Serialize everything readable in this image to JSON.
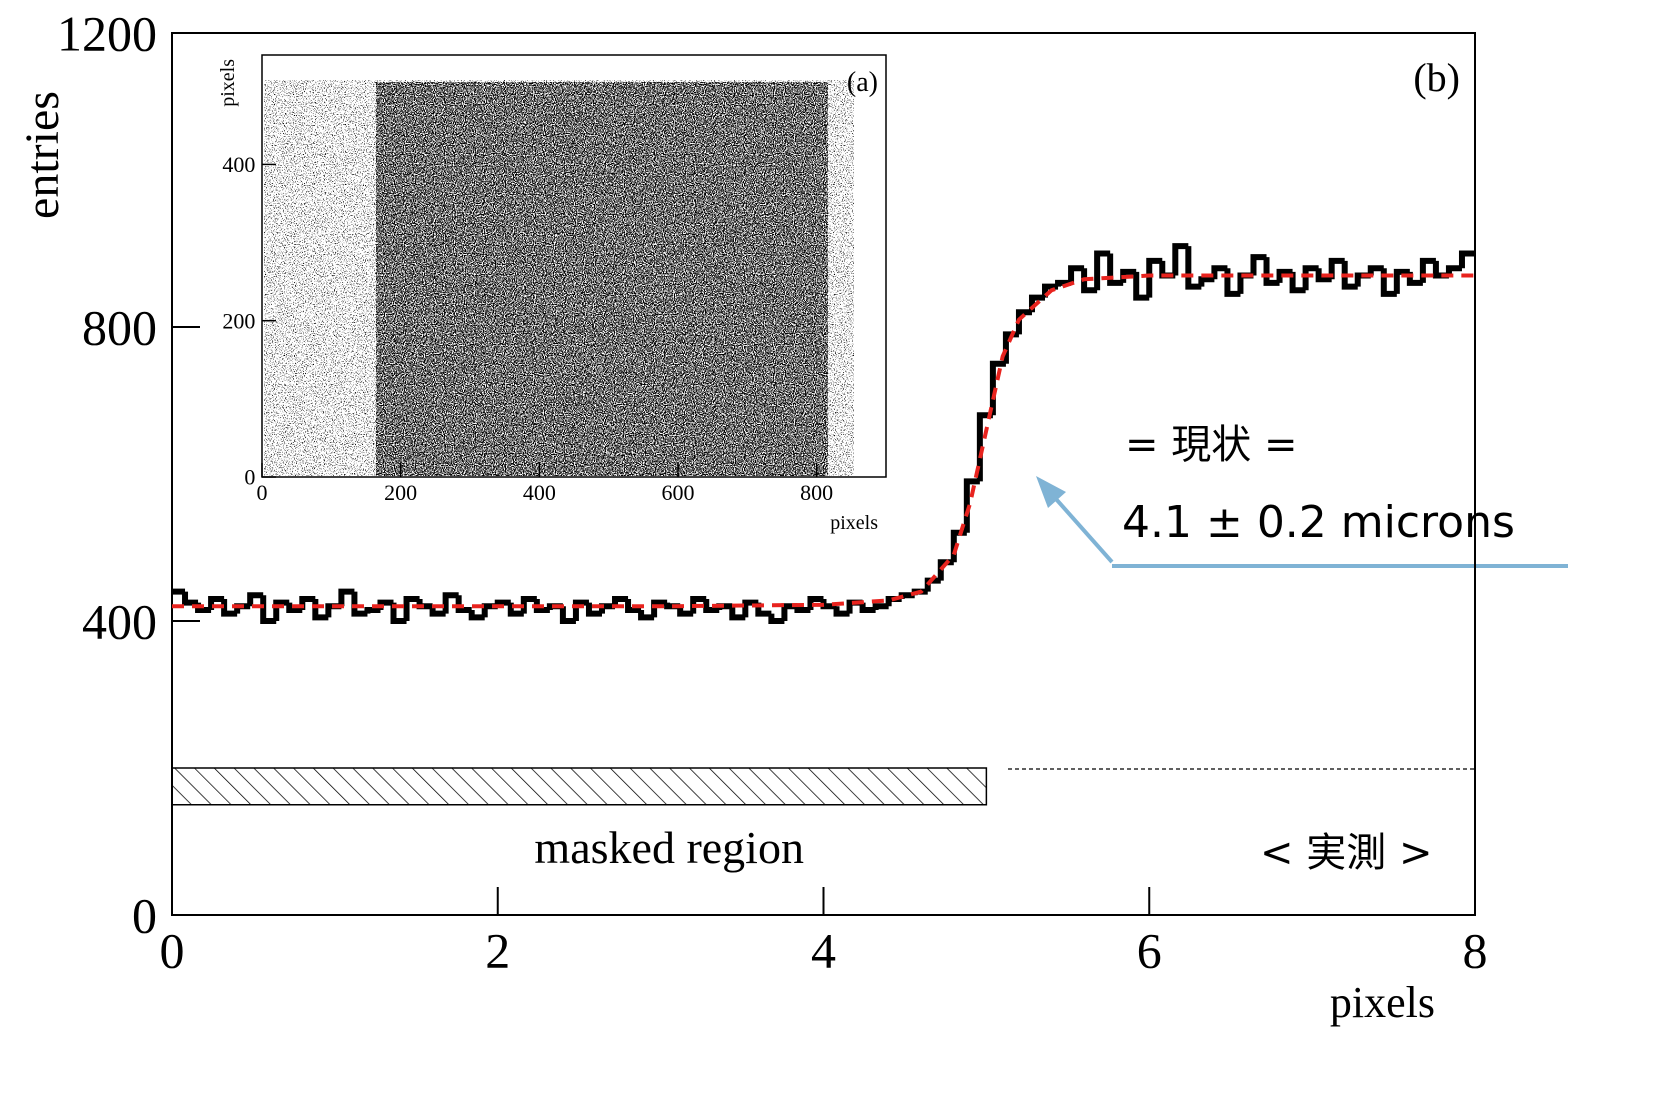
{
  "chart_data": [
    {
      "type": "histogram",
      "bins": [
        0,
        0.08,
        0.16,
        0.24,
        0.32,
        0.4,
        0.48,
        0.56,
        0.64,
        0.72,
        0.8,
        0.88,
        0.96,
        1.04,
        1.12,
        1.2,
        1.28,
        1.36,
        1.44,
        1.52,
        1.6,
        1.68,
        1.76,
        1.84,
        1.92,
        2,
        2.08,
        2.16,
        2.24,
        2.32,
        2.4,
        2.48,
        2.56,
        2.64,
        2.72,
        2.8,
        2.88,
        2.96,
        3.04,
        3.12,
        3.2,
        3.28,
        3.36,
        3.44,
        3.52,
        3.6,
        3.68,
        3.76,
        3.84,
        3.92,
        4,
        4.08,
        4.16,
        4.24,
        4.32,
        4.4,
        4.48,
        4.56,
        4.64,
        4.72,
        4.8,
        4.88,
        4.96,
        5.04,
        5.12,
        5.2,
        5.28,
        5.36,
        5.44,
        5.52,
        5.6,
        5.68,
        5.76,
        5.84,
        5.92,
        6,
        6.08,
        6.16,
        6.24,
        6.32,
        6.4,
        6.48,
        6.56,
        6.64,
        6.72,
        6.8,
        6.88,
        6.96,
        7.04,
        7.12,
        7.2,
        7.28,
        7.36,
        7.44,
        7.52,
        7.6,
        7.68,
        7.76,
        7.84,
        7.92,
        8
      ],
      "values": [
        440,
        425,
        415,
        430,
        410,
        420,
        435,
        400,
        425,
        415,
        430,
        405,
        420,
        440,
        410,
        415,
        425,
        400,
        430,
        420,
        410,
        435,
        415,
        405,
        420,
        425,
        410,
        430,
        415,
        420,
        400,
        425,
        410,
        420,
        430,
        415,
        405,
        425,
        420,
        410,
        430,
        415,
        420,
        405,
        425,
        410,
        400,
        420,
        415,
        430,
        420,
        410,
        425,
        415,
        420,
        430,
        435,
        440,
        455,
        480,
        520,
        590,
        680,
        750,
        790,
        820,
        840,
        855,
        860,
        880,
        850,
        900,
        860,
        875,
        840,
        890,
        870,
        910,
        855,
        865,
        880,
        845,
        870,
        895,
        860,
        875,
        850,
        880,
        865,
        890,
        855,
        870,
        880,
        845,
        875,
        860,
        890,
        870,
        880,
        900
      ],
      "color": "#000000",
      "xlim": [
        0,
        8
      ],
      "ylim": [
        0,
        1200
      ],
      "xticks": [
        0,
        2,
        4,
        6,
        8
      ],
      "yticks": [
        0,
        400,
        800,
        1200
      ],
      "x_label": "pixels",
      "y_label": "entries",
      "panel_label": "(b)",
      "fit": {
        "x": [
          0,
          1,
          2,
          3,
          4,
          4.4,
          4.6,
          4.8,
          4.9,
          5.0,
          5.1,
          5.2,
          5.4,
          5.6,
          6,
          7,
          8
        ],
        "values": [
          420,
          420,
          420,
          420,
          422,
          428,
          440,
          490,
          560,
          660,
          760,
          810,
          850,
          865,
          870,
          870,
          870
        ],
        "color": "#e8231e"
      },
      "masked_region": {
        "label": "masked region",
        "x": [
          0,
          5
        ],
        "y": [
          150,
          200
        ]
      },
      "annotations": [
        "= 現状 =",
        "4.1 ± 0.2 microns",
        "< 実測 >"
      ]
    },
    {
      "type": "image",
      "xlim": [
        0,
        900
      ],
      "ylim": [
        0,
        540
      ],
      "xticks": [
        0,
        200,
        400,
        600,
        800
      ],
      "yticks": [
        0,
        200,
        400
      ],
      "x_label": "pixels",
      "y_label": "pixels",
      "panel_label": "(a)"
    }
  ]
}
